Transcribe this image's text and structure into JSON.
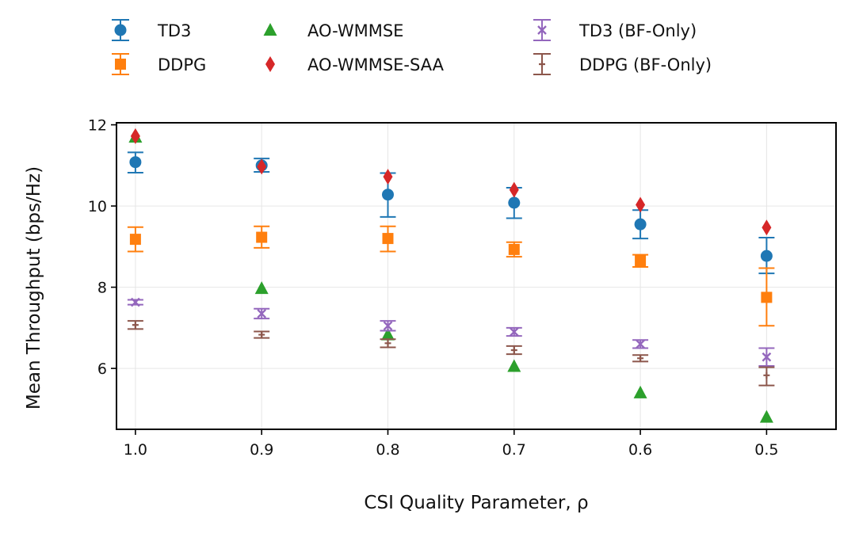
{
  "chart_data": {
    "type": "scatter",
    "title": "",
    "xlabel": "CSI Quality Parameter, ρ",
    "ylabel": "Mean Throughput (bps/Hz)",
    "x": [
      1.0,
      0.9,
      0.8,
      0.7,
      0.6,
      0.5
    ],
    "x_tick_labels": [
      "1.0",
      "0.9",
      "0.8",
      "0.7",
      "0.6",
      "0.5"
    ],
    "x_order": "descending",
    "ylim": [
      4.5,
      12.05
    ],
    "y_ticks": [
      6,
      8,
      10,
      12
    ],
    "y_tick_labels": [
      "6",
      "8",
      "10",
      "12"
    ],
    "grid": true,
    "legend_position": "top",
    "series": [
      {
        "name": "TD3",
        "marker": "circle",
        "color": "#1f77b4",
        "values": [
          11.08,
          11.0,
          10.28,
          10.08,
          9.55,
          8.77
        ],
        "err_low": [
          0.26,
          0.16,
          0.55,
          0.38,
          0.35,
          0.43
        ],
        "err_high": [
          0.24,
          0.17,
          0.53,
          0.37,
          0.35,
          0.45
        ]
      },
      {
        "name": "DDPG",
        "marker": "square",
        "color": "#ff7f0e",
        "values": [
          9.18,
          9.23,
          9.2,
          8.93,
          8.65,
          7.75
        ],
        "err_low": [
          0.3,
          0.26,
          0.32,
          0.18,
          0.15,
          0.7
        ],
        "err_high": [
          0.3,
          0.27,
          0.3,
          0.18,
          0.15,
          0.72
        ]
      },
      {
        "name": "AO-WMMSE",
        "marker": "triangle",
        "color": "#2ca02c",
        "values": [
          11.7,
          7.97,
          6.83,
          6.05,
          5.4,
          4.8
        ]
      },
      {
        "name": "AO-WMMSE-SAA",
        "marker": "diamond",
        "color": "#d62728",
        "values": [
          11.72,
          10.97,
          10.72,
          10.4,
          10.03,
          9.47
        ]
      },
      {
        "name": "TD3 (BF-Only)",
        "marker": "x",
        "color": "#9467bd",
        "values": [
          7.63,
          7.35,
          7.05,
          6.9,
          6.6,
          6.28
        ],
        "err_low": [
          0.06,
          0.12,
          0.12,
          0.1,
          0.1,
          0.22
        ],
        "err_high": [
          0.06,
          0.12,
          0.12,
          0.1,
          0.1,
          0.22
        ]
      },
      {
        "name": "DDPG (BF-Only)",
        "marker": "plus",
        "color": "#8c564b",
        "values": [
          7.07,
          6.83,
          6.62,
          6.45,
          6.25,
          5.83
        ],
        "err_low": [
          0.1,
          0.08,
          0.1,
          0.1,
          0.08,
          0.25
        ],
        "err_high": [
          0.1,
          0.08,
          0.1,
          0.1,
          0.08,
          0.2
        ]
      }
    ]
  }
}
